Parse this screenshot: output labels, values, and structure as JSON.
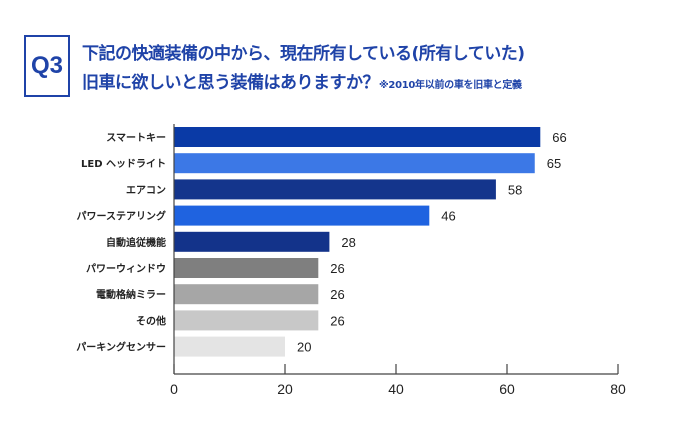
{
  "header": {
    "badge": "Q3",
    "line1": "下記の快適装備の中から、現在所有している(所有していた)",
    "line2": "旧車に欲しいと思う装備はありますか？",
    "note": "※2010年以前の車を旧車と定義"
  },
  "chart_data": {
    "type": "bar",
    "orientation": "horizontal",
    "categories": [
      "スマートキー",
      "LED ヘッドライト",
      "エアコン",
      "パワーステアリング",
      "自動追従機能",
      "パワーウィンドウ",
      "電動格納ミラー",
      "その他",
      "パーキングセンサー"
    ],
    "values": [
      66,
      65,
      58,
      46,
      28,
      26,
      26,
      26,
      20
    ],
    "colors": [
      "#0a3aa6",
      "#3c78e6",
      "#14358c",
      "#1f63e0",
      "#13338a",
      "#7f7f7f",
      "#a6a6a6",
      "#c8c8c8",
      "#e4e4e4"
    ],
    "xlim": [
      0,
      80
    ],
    "xticks": [
      0,
      20,
      40,
      60,
      80
    ],
    "xtick_labels": [
      "0",
      "20",
      "40",
      "60",
      "80"
    ],
    "title": "",
    "xlabel": "",
    "ylabel": "",
    "grid": false,
    "data_labels": true
  }
}
